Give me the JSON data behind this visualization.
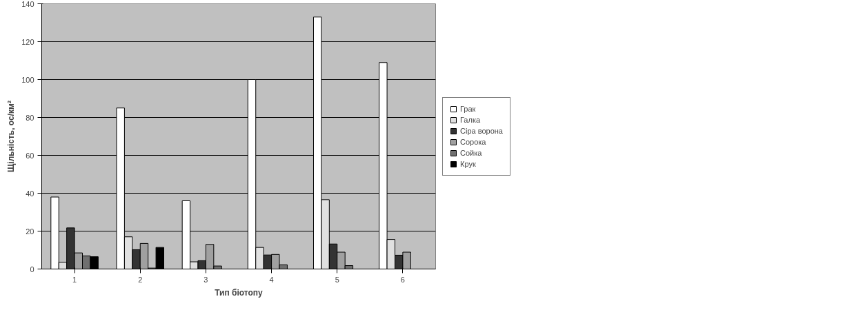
{
  "chart_data": {
    "type": "bar",
    "xlabel": "Тип біотопу",
    "ylabel": "Щільність, ос/км²",
    "categories": [
      "1",
      "2",
      "3",
      "4",
      "5",
      "6"
    ],
    "ylim": [
      0,
      140
    ],
    "yticks": [
      0,
      20,
      40,
      60,
      80,
      100,
      120,
      140
    ],
    "grid": "y",
    "legend": "right",
    "series": [
      {
        "name": "Грак",
        "color": "#ffffff",
        "values": [
          38,
          85,
          36,
          100,
          133,
          109
        ]
      },
      {
        "name": "Галка",
        "color": "#e0e0e0",
        "values": [
          3.6,
          17,
          3.8,
          11.4,
          36.6,
          15.6
        ]
      },
      {
        "name": "Сіра ворона",
        "color": "#333333",
        "values": [
          21.7,
          10.2,
          4.4,
          7.4,
          13.2,
          7.3
        ]
      },
      {
        "name": "Сорока",
        "color": "#a0a0a0",
        "values": [
          8.5,
          13.5,
          13,
          7.7,
          8.9,
          8.9
        ]
      },
      {
        "name": "Сойка",
        "color": "#707070",
        "values": [
          6.9,
          0.5,
          1.6,
          2.2,
          1.8,
          null
        ]
      },
      {
        "name": "Крук",
        "color": "#000000",
        "values": [
          6.5,
          11.4,
          null,
          null,
          null,
          null
        ]
      }
    ]
  }
}
